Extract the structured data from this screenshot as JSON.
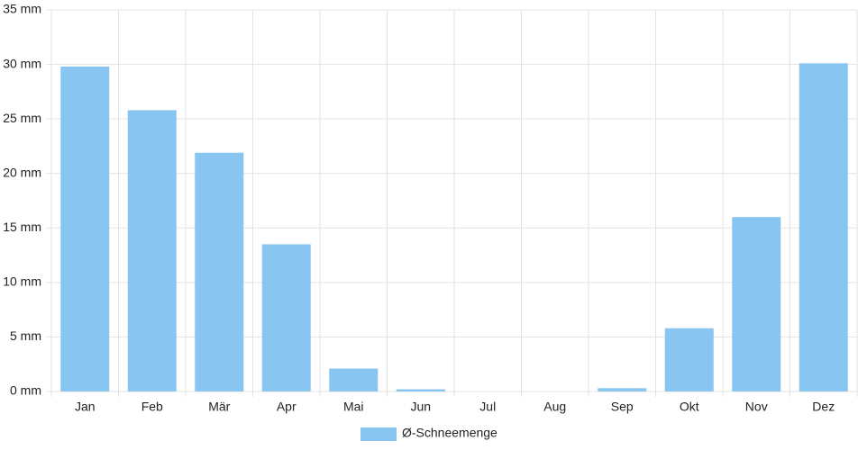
{
  "chart_data": {
    "type": "bar",
    "categories": [
      "Jan",
      "Feb",
      "Mär",
      "Apr",
      "Mai",
      "Jun",
      "Jul",
      "Aug",
      "Sep",
      "Okt",
      "Nov",
      "Dez"
    ],
    "series": [
      {
        "name": "Ø-Schneemenge",
        "color": "#88c5f0",
        "values": [
          29.8,
          25.8,
          21.9,
          13.5,
          2.1,
          0.2,
          0,
          0,
          0.3,
          5.8,
          16.0,
          30.1
        ]
      }
    ],
    "ylim": [
      0,
      35
    ],
    "yticks": [
      {
        "value": 0,
        "label": "0 mm"
      },
      {
        "value": 5,
        "label": "5 mm"
      },
      {
        "value": 10,
        "label": "10 mm"
      },
      {
        "value": 15,
        "label": "15 mm"
      },
      {
        "value": 20,
        "label": "20 mm"
      },
      {
        "value": 25,
        "label": "25 mm"
      },
      {
        "value": 30,
        "label": "30 mm"
      },
      {
        "value": 35,
        "label": "35 mm"
      }
    ],
    "grid": true,
    "legend": "bottom"
  }
}
